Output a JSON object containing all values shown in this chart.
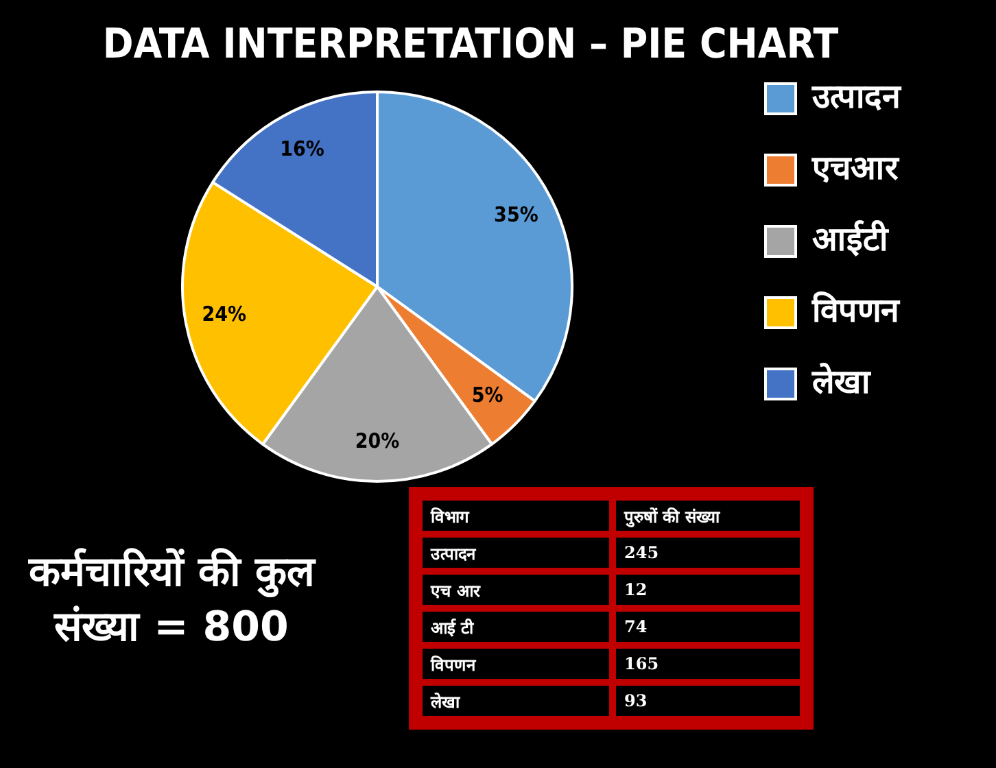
{
  "chart_data": [
    {
      "type": "pie",
      "title": "DATA INTERPRETATION – PIE CHART",
      "categories": [
        "उत्पादन",
        "एचआर",
        "आईटी",
        "विपणन",
        "लेखा"
      ],
      "values": [
        35,
        5,
        20,
        24,
        16
      ],
      "colors": [
        "#5b9bd5",
        "#ed7d31",
        "#a5a5a5",
        "#ffc000",
        "#4472c4"
      ],
      "value_labels": [
        "35%",
        "5%",
        "20%",
        "24%",
        "16%"
      ],
      "legend": "right",
      "annotations": [
        "कर्मचारियों की कुल संख्या = 800"
      ]
    },
    {
      "type": "other",
      "annotations": [
        "विभाग",
        "पुरुषों की संख्या"
      ],
      "categories": [
        "उत्पादन",
        "एच आर",
        "आई टी",
        "विपणन",
        "लेखा"
      ],
      "values": [
        245,
        12,
        74,
        165,
        93
      ],
      "data_labels": true
    }
  ]
}
